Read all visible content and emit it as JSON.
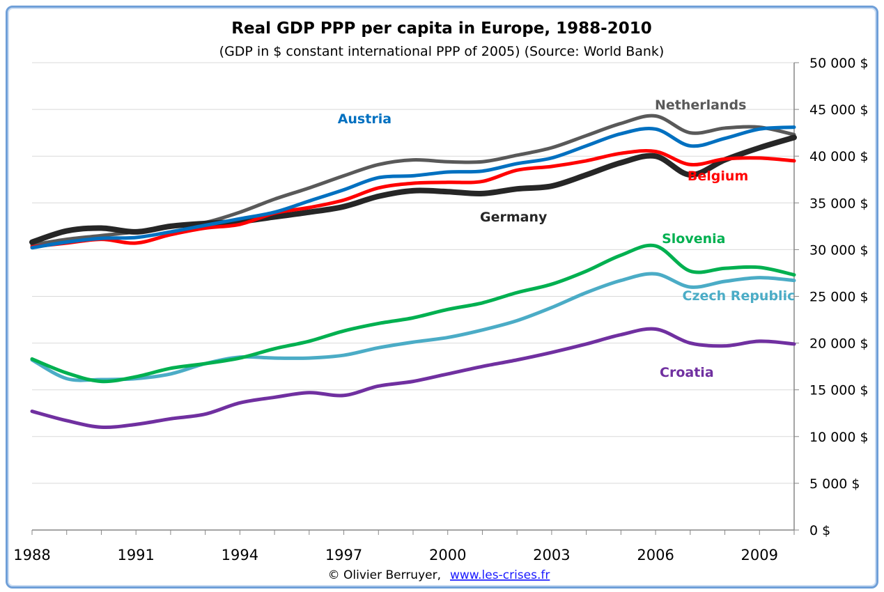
{
  "chart_data": {
    "type": "line",
    "title": "Real GDP PPP per capita in Europe, 1988-2010",
    "subtitle": "(GDP in $ constant international PPP of 2005) (Source: World Bank)",
    "x": [
      1988,
      1989,
      1990,
      1991,
      1992,
      1993,
      1994,
      1995,
      1996,
      1997,
      1998,
      1999,
      2000,
      2001,
      2002,
      2003,
      2004,
      2005,
      2006,
      2007,
      2008,
      2009,
      2010
    ],
    "x_tick_labels": [
      "1988",
      "1991",
      "1994",
      "1997",
      "2000",
      "2003",
      "2006",
      "2009"
    ],
    "xlim": [
      1988,
      2010
    ],
    "ylim": [
      0,
      50000
    ],
    "y_tick_labels": [
      "0 $",
      "5 000 $",
      "10 000 $",
      "15 000 $",
      "20 000 $",
      "25 000 $",
      "30 000 $",
      "35 000 $",
      "40 000 $",
      "45 000 $",
      "50 000 $"
    ],
    "y_axis_side": "right",
    "grid": true,
    "series": [
      {
        "name": "Netherlands",
        "color": "#595959",
        "values": [
          30500,
          31100,
          31500,
          31900,
          32400,
          32900,
          34000,
          35400,
          36600,
          37900,
          39100,
          39600,
          39400,
          39400,
          40100,
          40900,
          42200,
          43500,
          44300,
          42500,
          43000,
          43100,
          42300
        ]
      },
      {
        "name": "Austria",
        "color": "#0070c0",
        "values": [
          30200,
          30800,
          31200,
          31300,
          31900,
          32600,
          33300,
          34000,
          35200,
          36400,
          37700,
          37900,
          38300,
          38400,
          39200,
          39800,
          41100,
          42400,
          42900,
          41100,
          41900,
          42900,
          43100
        ]
      },
      {
        "name": "Belgium",
        "color": "#ff0000",
        "values": [
          30300,
          30700,
          31100,
          30700,
          31600,
          32300,
          32700,
          33900,
          34500,
          35300,
          36600,
          37100,
          37200,
          37300,
          38500,
          38900,
          39500,
          40300,
          40500,
          39100,
          39700,
          39800,
          39500
        ]
      },
      {
        "name": "Germany",
        "color": "#262626",
        "values": [
          30800,
          32000,
          32300,
          31900,
          32500,
          32800,
          33000,
          33500,
          34000,
          34600,
          35700,
          36300,
          36200,
          36000,
          36500,
          36800,
          38000,
          39300,
          40000,
          38000,
          39600,
          40900,
          42000
        ]
      },
      {
        "name": "Slovenia",
        "color": "#00b050",
        "values": [
          18300,
          16800,
          15900,
          16400,
          17300,
          17800,
          18400,
          19400,
          20200,
          21300,
          22100,
          22700,
          23600,
          24300,
          25400,
          26300,
          27700,
          29400,
          30400,
          27700,
          28000,
          28100,
          27300
        ]
      },
      {
        "name": "Czech Republic",
        "color": "#4bacc6",
        "values": [
          18200,
          16200,
          16100,
          16200,
          16700,
          17800,
          18500,
          18400,
          18400,
          18700,
          19500,
          20100,
          20600,
          21400,
          22400,
          23800,
          25400,
          26700,
          27400,
          26000,
          26600,
          27000,
          26700
        ]
      },
      {
        "name": "Croatia",
        "color": "#7030a0",
        "values": [
          12700,
          11700,
          11000,
          11300,
          11900,
          12400,
          13600,
          14200,
          14700,
          14400,
          15400,
          15900,
          16700,
          17500,
          18200,
          19000,
          19900,
          20900,
          21500,
          20000,
          19700,
          20200,
          19900
        ]
      }
    ]
  },
  "credit": {
    "text": "© Olivier Berruyer,",
    "link": "www.les-crises.fr"
  }
}
